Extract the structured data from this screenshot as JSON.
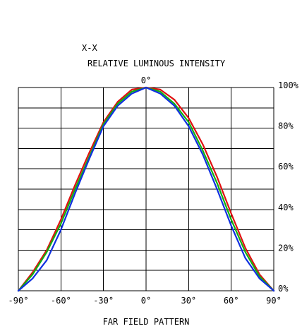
{
  "chart_data": {
    "type": "line",
    "title": "X-X",
    "subtitle": "RELATIVE LUMINOUS INTENSITY",
    "xlabel": "FAR FIELD PATTERN",
    "top_label": "0°",
    "xlim": [
      -90,
      90
    ],
    "ylim": [
      0,
      100
    ],
    "x_ticks": [
      "-90°",
      "-60°",
      "-30°",
      "0°",
      "30°",
      "60°",
      "90°"
    ],
    "y_ticks": [
      "0%",
      "20%",
      "40%",
      "60%",
      "80%",
      "100%"
    ],
    "grid": true,
    "series": [
      {
        "color": "#e01010",
        "x": [
          -90,
          -80,
          -70,
          -60,
          -50,
          -40,
          -30,
          -20,
          -10,
          0,
          10,
          20,
          30,
          40,
          50,
          60,
          70,
          80,
          90
        ],
        "y": [
          0,
          9,
          20,
          35,
          52,
          68,
          83,
          93,
          99,
          100,
          99,
          94,
          85,
          72,
          56,
          38,
          21,
          8,
          0
        ]
      },
      {
        "color": "#10b010",
        "x": [
          -90,
          -80,
          -70,
          -60,
          -50,
          -40,
          -30,
          -20,
          -10,
          0,
          10,
          20,
          30,
          40,
          50,
          60,
          70,
          80,
          90
        ],
        "y": [
          0,
          8,
          19,
          33,
          50,
          66,
          82,
          92,
          98,
          100,
          98,
          92,
          83,
          69,
          53,
          35,
          19,
          7,
          0
        ]
      },
      {
        "color": "#1030e0",
        "x": [
          -90,
          -80,
          -70,
          -60,
          -50,
          -40,
          -30,
          -20,
          -10,
          0,
          10,
          20,
          30,
          40,
          50,
          60,
          70,
          80,
          90
        ],
        "y": [
          0,
          6,
          15,
          30,
          48,
          65,
          81,
          91,
          97,
          100,
          97,
          91,
          81,
          67,
          50,
          32,
          16,
          6,
          0
        ]
      }
    ]
  }
}
